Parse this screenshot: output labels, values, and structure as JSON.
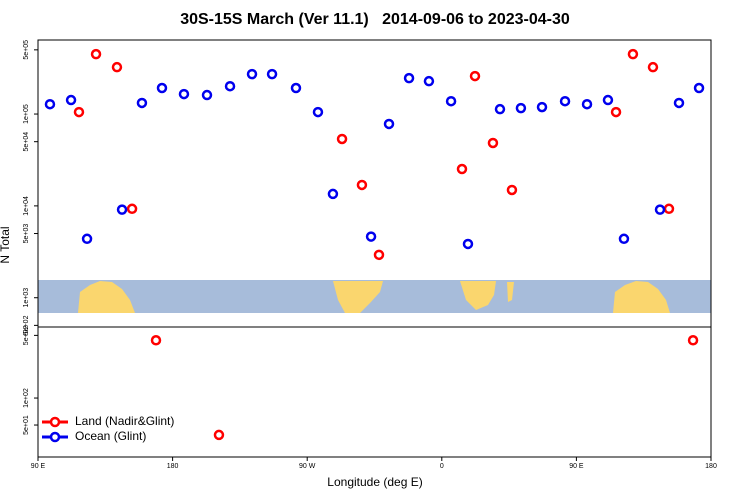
{
  "chart_data": [
    {
      "type": "scatter",
      "title": "30S-15S March (Ver 11.1)   2014-09-06 to 2023-04-30",
      "y_label": "N Total",
      "xlim": [
        90,
        540
      ],
      "ylim": [
        480,
        640000
      ],
      "y_log": true,
      "yticks": [
        {
          "value": 500000,
          "label": "5e+05"
        },
        {
          "value": 100000,
          "label": "1e+05"
        },
        {
          "value": 50000,
          "label": "5e+04"
        },
        {
          "value": 10000,
          "label": "1e+04"
        },
        {
          "value": 5000,
          "label": "5e+03"
        },
        {
          "value": 1000,
          "label": "1e+03"
        },
        {
          "value": 500,
          "label": "5e+02"
        }
      ],
      "series": [
        {
          "color": "#ff0000",
          "x": [
            117.4,
            128.8,
            142.8,
            152.9,
            293.3,
            306.6,
            318,
            373.5,
            382.2,
            394.2,
            406.9,
            476.5,
            487.8,
            501.2,
            511.9
          ],
          "values": [
            105000,
            449000,
            324000,
            9300,
            53500,
            16900,
            2930,
            25200,
            259000,
            48400,
            14900,
            105000,
            449000,
            324000,
            9300
          ]
        },
        {
          "color": "#0000ee",
          "x": [
            98,
            112.1,
            122.8,
            146.2,
            159.5,
            172.9,
            187.6,
            203,
            218.4,
            233.1,
            246.5,
            262.5,
            277.2,
            287.2,
            312.7,
            324.7,
            338.1,
            351.4,
            366.2,
            377.5,
            398.9,
            412.9,
            427,
            442.4,
            457.1,
            471.1,
            481.8,
            505.9,
            518.6,
            532
          ],
          "values": [
            128000,
            142000,
            4380,
            9100,
            132000,
            192000,
            165000,
            161000,
            201000,
            272000,
            272000,
            192000,
            105000,
            13500,
            4630,
            78000,
            246000,
            228000,
            138000,
            3850,
            113000,
            116000,
            119000,
            138000,
            128000,
            142000,
            4380,
            9100,
            132000,
            192000
          ]
        }
      ]
    },
    {
      "type": "scatter",
      "x_label": "Longitude (deg E)",
      "xlim": [
        90,
        540
      ],
      "ylim": [
        22,
        620
      ],
      "y_log": true,
      "xticks": [
        {
          "value": 90,
          "label": "90 E"
        },
        180,
        {
          "value": 270,
          "label": "90 W"
        },
        {
          "value": 360,
          "label": "0"
        },
        {
          "value": 450,
          "label": "90 E"
        },
        {
          "value": 540,
          "label": "180"
        }
      ],
      "yticks": [
        {
          "value": 500,
          "label": "5e+02"
        },
        {
          "value": 100,
          "label": "1e+02"
        },
        {
          "value": 50,
          "label": "5e+01"
        }
      ],
      "legend": "lower left",
      "series": [
        {
          "name": "Land (Nadir&Glint)",
          "color": "#ff0000",
          "x": [
            168.9,
            211,
            528
          ],
          "values": [
            441,
            38.8,
            441
          ]
        },
        {
          "name": "Ocean (Glint)",
          "color": "#0000ee",
          "x": [],
          "values": []
        }
      ]
    }
  ]
}
